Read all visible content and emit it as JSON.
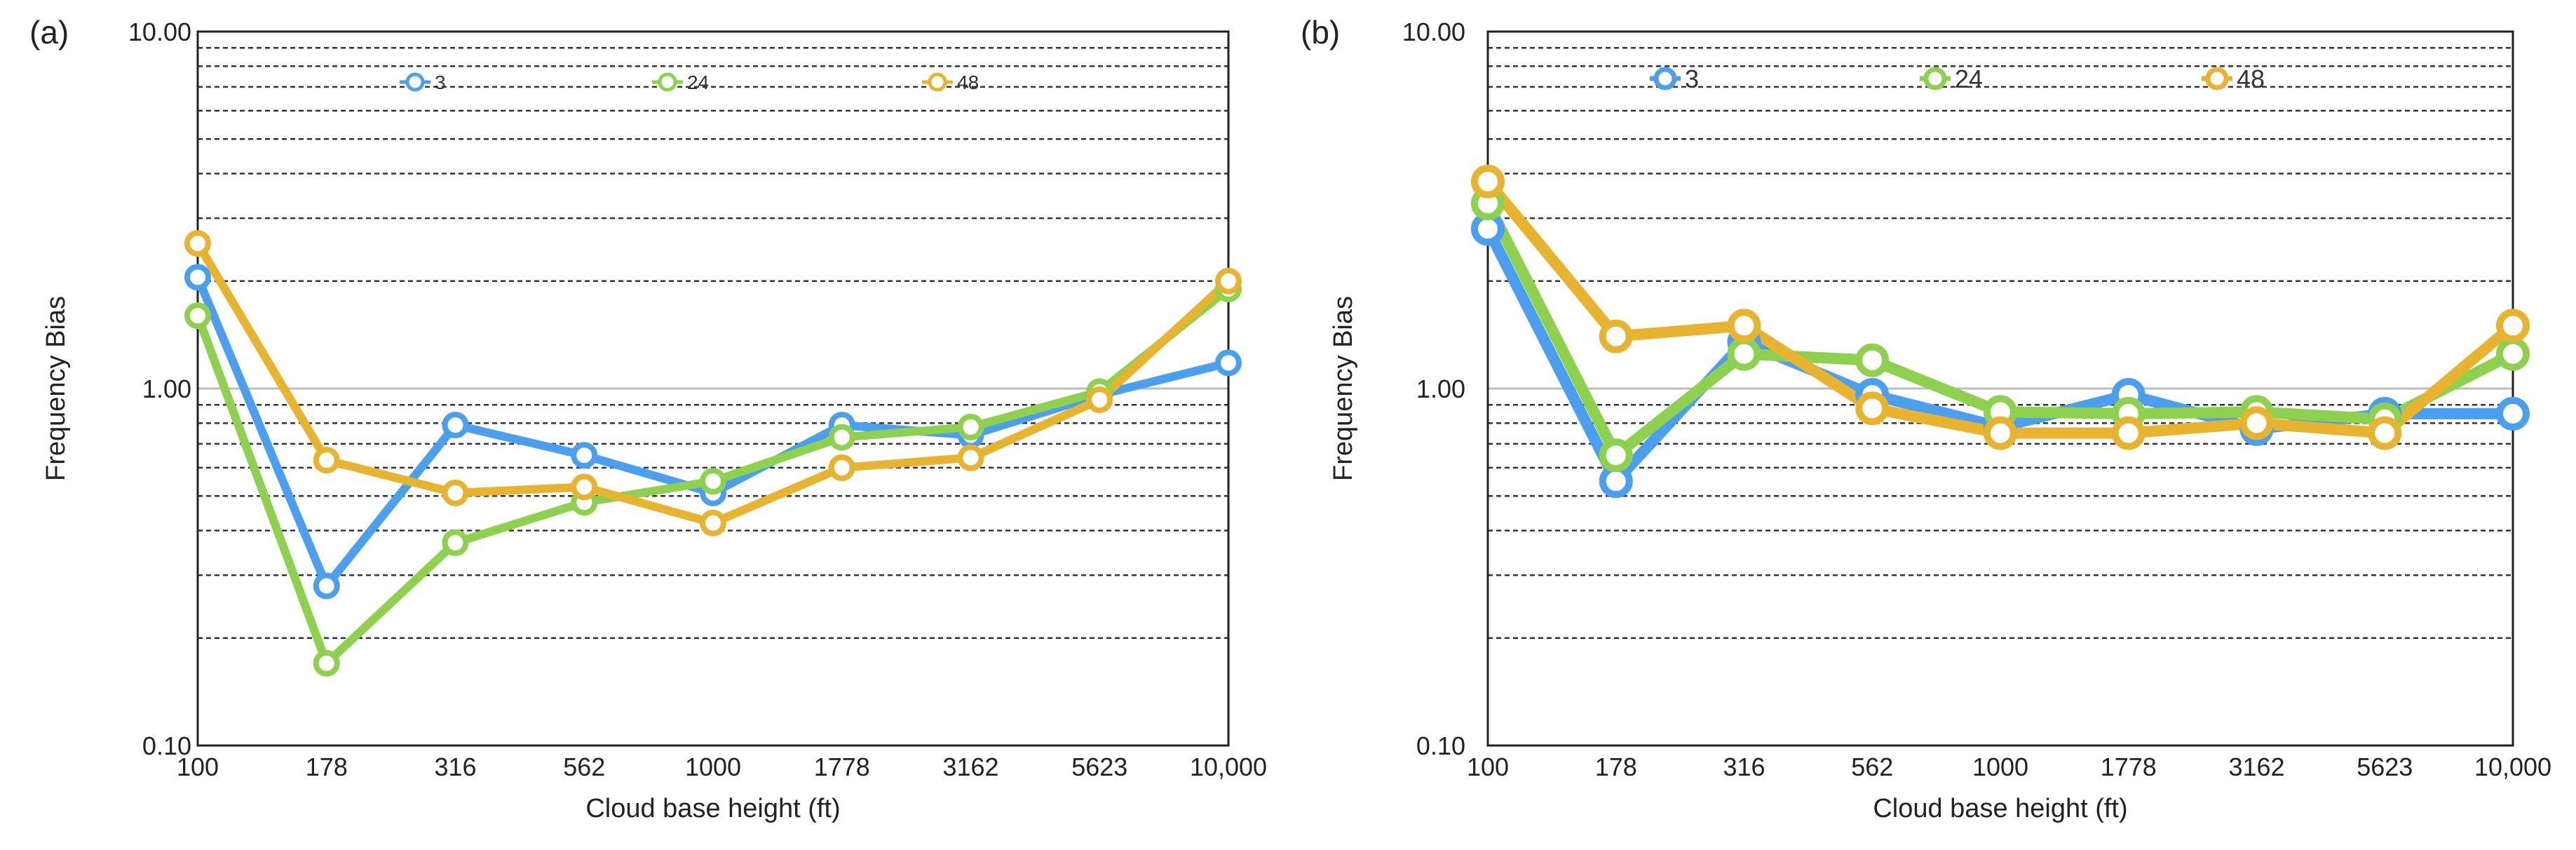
{
  "colors": {
    "s3": "#4a9ff0",
    "s24": "#8ed14e",
    "s48": "#e8b42f"
  },
  "chart_data": [
    {
      "panel_label": "(a)",
      "type": "line",
      "xlabel": "Cloud base height (ft)",
      "ylabel": "Frequency Bias",
      "categories": [
        "100",
        "178",
        "316",
        "562",
        "1000",
        "1778",
        "3162",
        "5623",
        "10,000"
      ],
      "yscale": "log",
      "ylim": [
        0.1,
        10
      ],
      "yticks": [
        "0.10",
        "1.00",
        "10.00"
      ],
      "legend_position": "top",
      "series": [
        {
          "name": "3",
          "color_key": "s3",
          "values": [
            2.05,
            0.28,
            0.79,
            0.65,
            0.51,
            0.79,
            0.74,
            0.96,
            1.18
          ]
        },
        {
          "name": "24",
          "color_key": "s24",
          "values": [
            1.6,
            0.17,
            0.37,
            0.48,
            0.55,
            0.73,
            0.78,
            0.98,
            1.9
          ]
        },
        {
          "name": "48",
          "color_key": "s48",
          "values": [
            2.55,
            0.63,
            0.51,
            0.53,
            0.42,
            0.6,
            0.64,
            0.93,
            2.0
          ]
        }
      ]
    },
    {
      "panel_label": "(b)",
      "type": "line",
      "xlabel": "Cloud base height (ft)",
      "ylabel": "Frequency Bias",
      "categories": [
        "100",
        "178",
        "316",
        "562",
        "1000",
        "1778",
        "3162",
        "5623",
        "10,000"
      ],
      "yscale": "log",
      "ylim": [
        0.1,
        10
      ],
      "yticks": [
        "0.10",
        "1.00",
        "10.00"
      ],
      "legend_position": "top",
      "series": [
        {
          "name": "3",
          "color_key": "s3",
          "values": [
            2.8,
            0.55,
            1.35,
            0.96,
            0.78,
            0.96,
            0.77,
            0.85,
            0.85
          ]
        },
        {
          "name": "24",
          "color_key": "s24",
          "values": [
            3.3,
            0.65,
            1.25,
            1.2,
            0.86,
            0.85,
            0.86,
            0.82,
            1.25
          ]
        },
        {
          "name": "48",
          "color_key": "s48",
          "values": [
            3.8,
            1.4,
            1.5,
            0.88,
            0.75,
            0.75,
            0.8,
            0.75,
            1.5
          ]
        }
      ]
    }
  ]
}
